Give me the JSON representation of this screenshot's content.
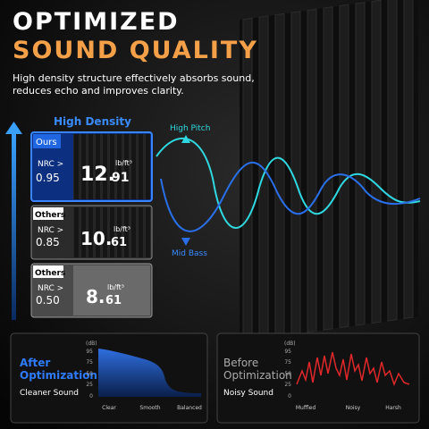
{
  "header": {
    "title_line1": "OPTIMIZED",
    "title_line2": "SOUND QUALITY",
    "subtitle_line1": "High density structure effectively absorbs sound,",
    "subtitle_line2": "reduces echo and improves clarity."
  },
  "density": {
    "label": "High Density",
    "cards": [
      {
        "tag": "Ours",
        "nrc_label": "NRC >",
        "nrc": "0.95",
        "whole": "12.",
        "fraction": "91",
        "unit": "lb/ft³"
      },
      {
        "tag": "Others",
        "nrc_label": "NRC >",
        "nrc": "0.85",
        "whole": "10.",
        "fraction": "61",
        "unit": "lb/ft³"
      },
      {
        "tag": "Others",
        "nrc_label": "NRC >",
        "nrc": "0.50",
        "whole": "8.",
        "fraction": "61",
        "unit": "lb/ft³"
      }
    ]
  },
  "waves": {
    "high": "High Pitch",
    "low": "Mid Bass"
  },
  "panels": [
    {
      "title_line1": "After",
      "title_line2": "Optimization",
      "caption": "Cleaner Sound",
      "unit": "(dB)",
      "yticks": [
        "95",
        "75",
        "50",
        "25",
        "0"
      ],
      "xlabels": [
        "Clear",
        "Smooth",
        "Balanced"
      ]
    },
    {
      "title_line1": "Before",
      "title_line2": "Optimization",
      "caption": "Noisy Sound",
      "unit": "(dB)",
      "yticks": [
        "95",
        "75",
        "50",
        "25",
        "0"
      ],
      "xlabels": [
        "Muffled",
        "Noisy",
        "Harsh"
      ]
    }
  ]
}
